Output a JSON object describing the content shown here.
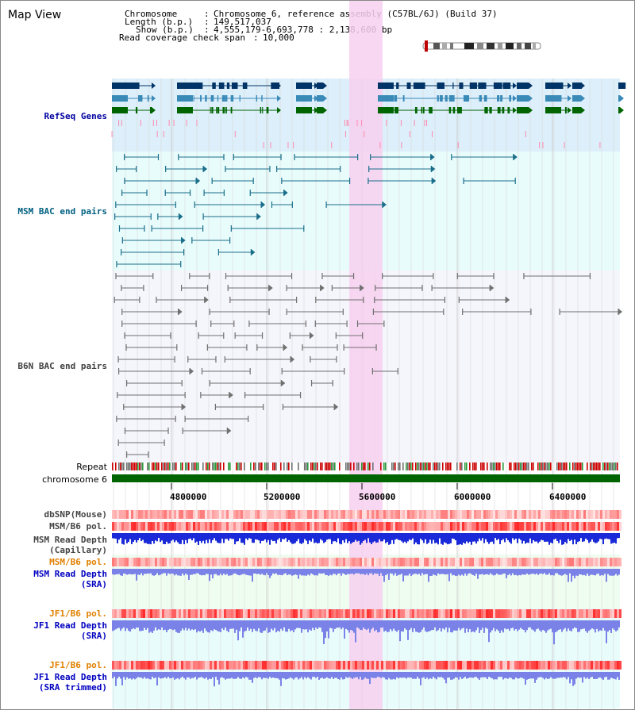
{
  "title": "Map View",
  "info": {
    "chromosome_label": "Chromosome",
    "chromosome_value": "Chromosome 6, reference assembly (C57BL/6J) (Build 37)",
    "length_label": "Length (b.p.)",
    "length_value": "149,517,037",
    "show_label": "Show (b.p.)",
    "show_value": "4,555,179-6,693,778 : 2,138,600 bp",
    "span_label": "Read coverage check span",
    "span_value": "10,000"
  },
  "tracks": {
    "refseq": "RefSeq Genes",
    "msm_bac": "MSM BAC end pairs",
    "b6n_bac": "B6N BAC end pairs",
    "repeat": "Repeat",
    "chromosome": "chromosome 6",
    "dbsnp": "dbSNP(Mouse)",
    "msm_pol": "MSM/B6 pol.",
    "msm_depth_cap_1": "MSM Read Depth",
    "msm_depth_cap_2": "(Capillary)",
    "msm_pol2": "MSM/B6 pol.",
    "msm_depth_sra_1": "MSM Read Depth",
    "msm_depth_sra_2": "(SRA)",
    "jf1_pol": "JF1/B6 pol.",
    "jf1_depth_sra_1": "JF1 Read Depth",
    "jf1_depth_sra_2": "(SRA)",
    "jf1_pol2": "JF1/B6 pol.",
    "jf1_depth_trim_1": "JF1 Read Depth",
    "jf1_depth_trim_2": "(SRA trimmed)"
  },
  "axis_ticks": [
    "4800000",
    "5200000",
    "5600000",
    "6000000",
    "6400000"
  ],
  "colors": {
    "refseq_label": "#0000a0",
    "msm_label": "#006080",
    "b6n_label": "#404040",
    "pol_orange": "#e08000",
    "highlight": "#f7d0f0"
  }
}
